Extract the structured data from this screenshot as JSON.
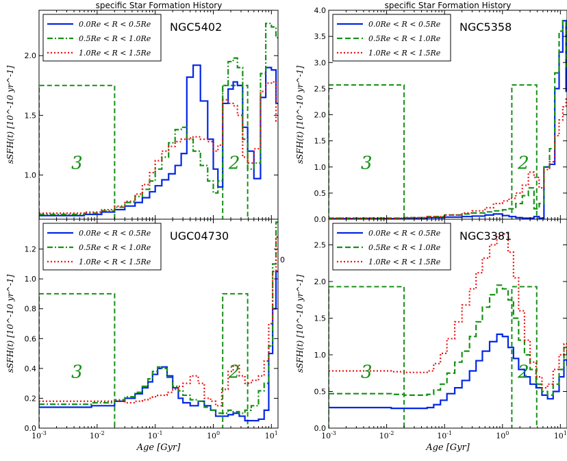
{
  "figure_titles": [
    "specific Star Formation History",
    "specific Star Formation History"
  ],
  "xlabel": "Age [Gyr]",
  "ylabel": "sSFH(t) [10^-10 yr^-1]",
  "legend_labels": [
    "0.0Re < R < 0.5Re",
    "0.5Re < R < 1.0Re",
    "1.0Re < R < 1.5Re"
  ],
  "region_labels": [
    "3",
    "2"
  ],
  "xtick_labels": [
    "10^-3",
    "10^-2",
    "10^-1",
    "10^0",
    "10^1"
  ],
  "colors": {
    "inner": "#0026e6",
    "middle": "#159015",
    "outer": "#ee1111",
    "boxes": "#159015"
  },
  "stray_label": "0",
  "chart_data": [
    {
      "type": "line",
      "title": "specific Star Formation History",
      "galaxy": "NGC5402",
      "xscale": "log",
      "xlim": [
        0.001,
        13
      ],
      "ylim": [
        0.63,
        2.38
      ],
      "yticks": [
        1.0,
        1.5,
        2.0
      ],
      "ytick_labels": [
        "1.0",
        "1.5",
        "2.0"
      ],
      "xlabel": "",
      "ylabel": "sSFH(t) [10^-10 yr^-1]",
      "regions": [
        {
          "label": "3",
          "x": [
            0.001,
            0.02
          ],
          "top": 1.75
        },
        {
          "label": "2",
          "x": [
            1.45,
            3.9
          ],
          "top": 1.75
        }
      ],
      "x": [
        0.001,
        0.006,
        0.012,
        0.02,
        0.03,
        0.045,
        0.06,
        0.08,
        0.1,
        0.13,
        0.17,
        0.22,
        0.28,
        0.35,
        0.45,
        0.6,
        0.8,
        1.0,
        1.2,
        1.45,
        1.8,
        2.2,
        2.6,
        3.2,
        3.9,
        5.0,
        6.5,
        8.0,
        10.0,
        12.0,
        13.0
      ],
      "series": [
        {
          "name": "0.0Re < R < 0.5Re",
          "style": "solid",
          "values": [
            0.66,
            0.67,
            0.69,
            0.71,
            0.74,
            0.77,
            0.81,
            0.86,
            0.91,
            0.96,
            1.01,
            1.08,
            1.18,
            1.82,
            1.92,
            1.62,
            1.3,
            1.05,
            0.9,
            1.6,
            1.72,
            1.78,
            1.75,
            1.4,
            1.2,
            0.97,
            1.65,
            1.9,
            1.88,
            1.6,
            1.6
          ]
        },
        {
          "name": "0.5Re < R < 1.0Re",
          "style": "dashdot",
          "values": [
            0.67,
            0.68,
            0.7,
            0.73,
            0.77,
            0.82,
            0.88,
            0.95,
            1.05,
            1.15,
            1.27,
            1.38,
            1.4,
            1.3,
            1.2,
            1.08,
            0.95,
            0.85,
            0.95,
            1.75,
            1.95,
            1.98,
            1.9,
            1.3,
            1.05,
            1.1,
            1.85,
            2.27,
            2.24,
            2.15,
            2.15
          ]
        },
        {
          "name": "1.0Re < R < 1.5Re",
          "style": "dotted",
          "values": [
            0.68,
            0.69,
            0.71,
            0.74,
            0.78,
            0.84,
            0.92,
            1.02,
            1.12,
            1.2,
            1.24,
            1.28,
            1.3,
            1.31,
            1.32,
            1.3,
            1.28,
            1.2,
            1.25,
            1.63,
            1.6,
            1.58,
            1.5,
            1.15,
            1.1,
            1.22,
            1.7,
            1.77,
            1.78,
            1.45,
            1.45
          ]
        }
      ]
    },
    {
      "type": "line",
      "title": "specific Star Formation History",
      "galaxy": "NGC5358",
      "xscale": "log",
      "xlim": [
        0.001,
        13
      ],
      "ylim": [
        0,
        4.0
      ],
      "yticks": [
        0.0,
        0.5,
        1.0,
        1.5,
        2.0,
        2.5,
        3.0,
        3.5,
        4.0
      ],
      "ytick_labels": [
        "0.0",
        "0.5",
        "1.0",
        "1.5",
        "2.0",
        "2.5",
        "3.0",
        "3.5",
        "4.0"
      ],
      "xlabel": "",
      "ylabel": "sSFH(t) [10^-10 yr^-1]",
      "regions": [
        {
          "label": "3",
          "x": [
            0.001,
            0.02
          ],
          "top": 2.57
        },
        {
          "label": "2",
          "x": [
            1.45,
            3.9
          ],
          "top": 2.57
        }
      ],
      "x": [
        0.001,
        0.01,
        0.02,
        0.05,
        0.1,
        0.2,
        0.3,
        0.5,
        0.7,
        1.0,
        1.3,
        1.7,
        2.2,
        2.8,
        3.5,
        4.3,
        5.2,
        6.5,
        8.0,
        9.5,
        11.0,
        12.5,
        13.0
      ],
      "series": [
        {
          "name": "0.0Re < R < 0.5Re",
          "style": "solid",
          "values": [
            0.01,
            0.01,
            0.02,
            0.03,
            0.04,
            0.05,
            0.06,
            0.08,
            0.1,
            0.07,
            0.05,
            0.03,
            0.02,
            0.02,
            0.05,
            0.02,
            1.0,
            1.05,
            2.5,
            3.2,
            3.8,
            2.45,
            2.45
          ]
        },
        {
          "name": "0.5Re < R < 1.0Re",
          "style": "dashed",
          "values": [
            0.02,
            0.02,
            0.03,
            0.05,
            0.08,
            0.1,
            0.12,
            0.14,
            0.16,
            0.18,
            0.2,
            0.3,
            0.45,
            0.6,
            0.2,
            0.3,
            1.0,
            1.35,
            2.8,
            3.6,
            3.8,
            2.9,
            2.9
          ]
        },
        {
          "name": "1.0Re < R < 1.5Re",
          "style": "dotted",
          "values": [
            0.02,
            0.02,
            0.03,
            0.05,
            0.08,
            0.12,
            0.16,
            0.22,
            0.3,
            0.35,
            0.4,
            0.5,
            0.65,
            0.9,
            0.8,
            0.6,
            0.95,
            1.1,
            1.6,
            1.9,
            2.15,
            2.3,
            2.3
          ]
        }
      ]
    },
    {
      "type": "line",
      "galaxy": "UGC04730",
      "xscale": "log",
      "xlim": [
        0.001,
        13
      ],
      "ylim": [
        0,
        1.4
      ],
      "yticks": [
        0.0,
        0.2,
        0.4,
        0.6,
        0.8,
        1.0,
        1.2
      ],
      "ytick_labels": [
        "0.0",
        "0.2",
        "0.4",
        "0.6",
        "0.8",
        "1.0",
        "1.2"
      ],
      "xlabel": "Age [Gyr]",
      "ylabel": "sSFH(t) [10^-10 yr^-1]",
      "regions": [
        {
          "label": "3",
          "x": [
            0.001,
            0.02
          ],
          "top": 0.9
        },
        {
          "label": "2",
          "x": [
            1.45,
            3.9
          ],
          "top": 0.9
        }
      ],
      "x": [
        0.001,
        0.008,
        0.02,
        0.03,
        0.045,
        0.06,
        0.075,
        0.09,
        0.11,
        0.13,
        0.16,
        0.2,
        0.25,
        0.3,
        0.4,
        0.55,
        0.7,
        0.9,
        1.1,
        1.4,
        1.8,
        2.2,
        2.8,
        3.5,
        4.5,
        6.0,
        7.5,
        9.0,
        10.5,
        12.0,
        13.0
      ],
      "series": [
        {
          "name": "0.0Re < R < 0.5Re",
          "style": "solid",
          "values": [
            0.14,
            0.15,
            0.18,
            0.2,
            0.23,
            0.27,
            0.31,
            0.36,
            0.4,
            0.41,
            0.35,
            0.27,
            0.2,
            0.17,
            0.15,
            0.18,
            0.15,
            0.12,
            0.08,
            0.08,
            0.09,
            0.1,
            0.08,
            0.05,
            0.05,
            0.06,
            0.12,
            0.5,
            0.8,
            1.05,
            1.05
          ]
        },
        {
          "name": "0.5Re < R < 1.0Re",
          "style": "dashdot",
          "values": [
            0.16,
            0.17,
            0.19,
            0.21,
            0.24,
            0.28,
            0.33,
            0.38,
            0.41,
            0.4,
            0.34,
            0.28,
            0.25,
            0.22,
            0.19,
            0.18,
            0.14,
            0.12,
            0.1,
            0.1,
            0.12,
            0.11,
            0.1,
            0.12,
            0.15,
            0.25,
            0.3,
            0.55,
            1.1,
            1.38,
            1.38
          ]
        },
        {
          "name": "1.0Re < R < 1.5Re",
          "style": "dotted",
          "values": [
            0.18,
            0.18,
            0.18,
            0.17,
            0.18,
            0.19,
            0.2,
            0.21,
            0.22,
            0.22,
            0.24,
            0.26,
            0.28,
            0.3,
            0.35,
            0.3,
            0.2,
            0.18,
            0.15,
            0.26,
            0.38,
            0.42,
            0.35,
            0.3,
            0.32,
            0.35,
            0.45,
            0.7,
            1.05,
            1.28,
            1.28
          ]
        }
      ]
    },
    {
      "type": "line",
      "galaxy": "NGC3381",
      "xscale": "log",
      "xlim": [
        0.001,
        13
      ],
      "ylim": [
        0,
        2.85
      ],
      "yticks": [
        0.0,
        0.5,
        1.0,
        1.5,
        2.0,
        2.5
      ],
      "ytick_labels": [
        "0.0",
        "0.5",
        "1.0",
        "1.5",
        "2.0",
        "2.5"
      ],
      "xlabel": "Age [Gyr]",
      "ylabel": "sSFH(t) [10^-10 yr^-1]",
      "regions": [
        {
          "label": "3",
          "x": [
            0.001,
            0.02
          ],
          "top": 1.93
        },
        {
          "label": "2",
          "x": [
            1.45,
            3.9
          ],
          "top": 1.93
        }
      ],
      "x": [
        0.001,
        0.006,
        0.012,
        0.02,
        0.035,
        0.05,
        0.065,
        0.085,
        0.11,
        0.15,
        0.2,
        0.27,
        0.35,
        0.45,
        0.6,
        0.8,
        1.0,
        1.25,
        1.55,
        1.9,
        2.4,
        3.0,
        3.8,
        4.8,
        6.0,
        7.5,
        9.5,
        11.5,
        13.0
      ],
      "series": [
        {
          "name": "0.0Re < R < 0.5Re",
          "style": "solid",
          "values": [
            0.28,
            0.28,
            0.27,
            0.27,
            0.27,
            0.28,
            0.32,
            0.38,
            0.47,
            0.55,
            0.65,
            0.78,
            0.92,
            1.05,
            1.18,
            1.28,
            1.25,
            1.1,
            0.95,
            0.8,
            0.7,
            0.6,
            0.55,
            0.45,
            0.4,
            0.5,
            0.7,
            0.93,
            0.85
          ]
        },
        {
          "name": "0.5Re < R < 1.0Re",
          "style": "dashed",
          "values": [
            0.47,
            0.47,
            0.46,
            0.45,
            0.45,
            0.46,
            0.52,
            0.6,
            0.75,
            0.9,
            1.05,
            1.25,
            1.45,
            1.65,
            1.82,
            1.95,
            1.9,
            1.75,
            1.5,
            1.2,
            1.0,
            0.8,
            0.6,
            0.5,
            0.45,
            0.6,
            0.8,
            1.1,
            1.0
          ]
        },
        {
          "name": "1.0Re < R < 1.5Re",
          "style": "dotted",
          "values": [
            0.78,
            0.78,
            0.77,
            0.76,
            0.76,
            0.78,
            0.88,
            1.02,
            1.22,
            1.45,
            1.68,
            1.9,
            2.12,
            2.32,
            2.5,
            2.62,
            2.65,
            2.4,
            2.05,
            1.6,
            1.2,
            0.9,
            0.7,
            0.55,
            0.6,
            0.8,
            1.0,
            1.15,
            1.05
          ]
        }
      ]
    }
  ]
}
